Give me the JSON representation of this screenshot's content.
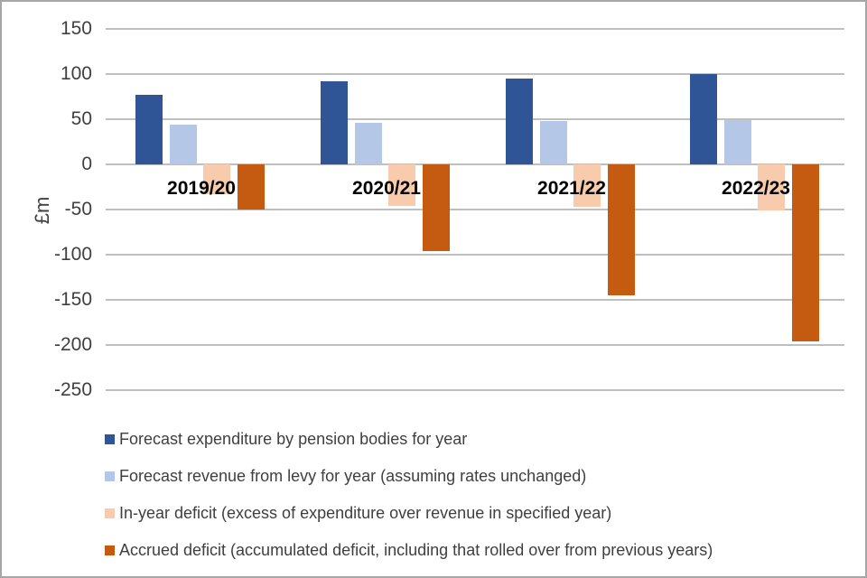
{
  "frame": {
    "background": "#ffffff",
    "border_color": "#a6a6a6"
  },
  "chart_data": {
    "type": "bar",
    "title": "",
    "xlabel": "",
    "ylabel": "£m",
    "categories": [
      "2019/20",
      "2020/21",
      "2021/22",
      "2022/23"
    ],
    "series": [
      {
        "name": "Forecast expenditure by pension bodies for year",
        "color": "#2f5597",
        "values": [
          77,
          92,
          95,
          100
        ]
      },
      {
        "name": "Forecast revenue from levy for year (assuming rates unchanged)",
        "color": "#b4c7e7",
        "values": [
          44,
          46,
          48,
          49
        ]
      },
      {
        "name": "In-year deficit (excess of expenditure over revenue in specified year)",
        "color": "#f8cbad",
        "values": [
          -33,
          -46,
          -47,
          -51
        ]
      },
      {
        "name": "Accrued deficit (accumulated deficit, including that rolled over from previous years)",
        "color": "#c55a11",
        "values": [
          -50,
          -96,
          -145,
          -196
        ]
      }
    ],
    "y_axis": {
      "min": -250,
      "max": 150,
      "tick_step": 50,
      "ticks": [
        150,
        100,
        50,
        0,
        -50,
        -100,
        -150,
        -200,
        -250
      ]
    },
    "grid": true,
    "gridline_color": "#bfbfbf",
    "tick_label_color": "#3f3f3f",
    "category_label_color": "#000000",
    "legend_position": "bottom"
  }
}
